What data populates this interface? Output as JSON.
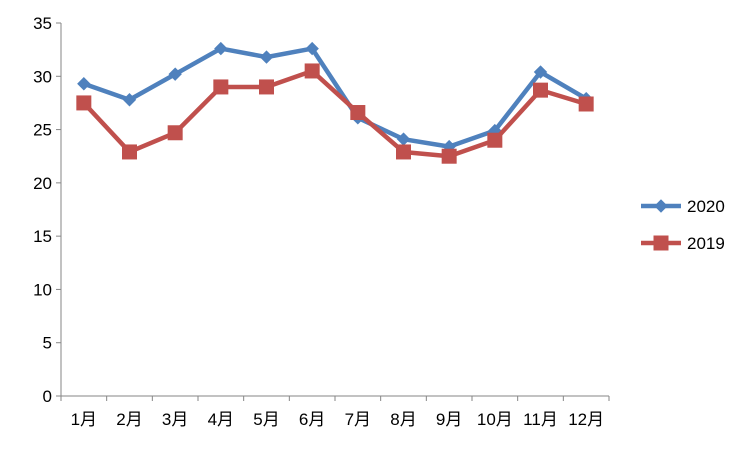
{
  "chart_data": {
    "type": "line",
    "title": "",
    "xlabel": "",
    "ylabel": "",
    "categories": [
      "1月",
      "2月",
      "3月",
      "4月",
      "5月",
      "6月",
      "7月",
      "8月",
      "9月",
      "10月",
      "11月",
      "12月"
    ],
    "ylim": [
      0,
      35
    ],
    "yticks": [
      0,
      5,
      10,
      15,
      20,
      25,
      30,
      35
    ],
    "grid": false,
    "legend_position": "right",
    "series": [
      {
        "name": "2020",
        "color": "#4F81BD",
        "marker": "diamond",
        "values": [
          29.3,
          27.8,
          30.2,
          32.6,
          31.8,
          32.6,
          26.1,
          24.1,
          23.4,
          24.9,
          30.4,
          27.9
        ]
      },
      {
        "name": "2019",
        "color": "#C0504D",
        "marker": "square",
        "values": [
          27.5,
          22.9,
          24.7,
          29.0,
          29.0,
          30.5,
          26.6,
          22.9,
          22.5,
          24.0,
          28.7,
          27.4
        ]
      }
    ]
  }
}
